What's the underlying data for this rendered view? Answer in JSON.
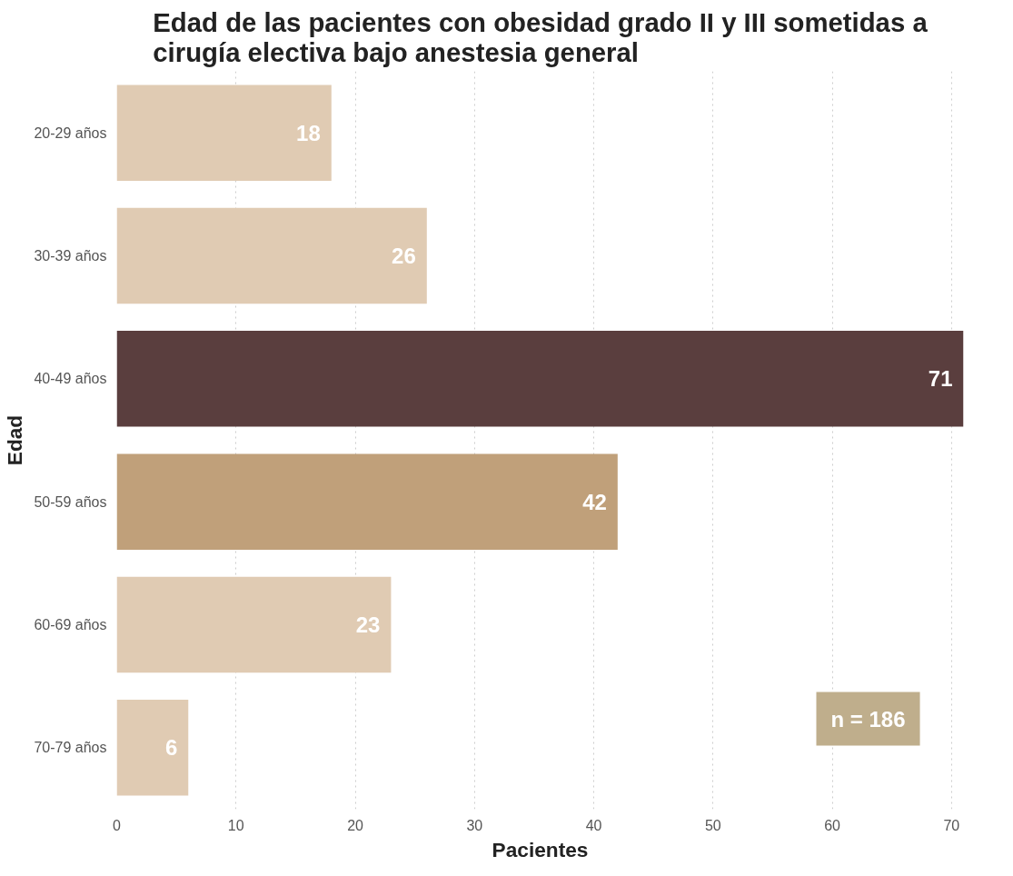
{
  "chart_data": {
    "type": "bar",
    "orientation": "horizontal",
    "title": "Edad de las pacientes con obesidad grado II y III sometidas a\ncirugía electiva bajo anestesia general",
    "xlabel": "Pacientes",
    "ylabel": "Edad",
    "categories": [
      "20-29 años",
      "30-39 años",
      "40-49 años",
      "50-59 años",
      "60-69 años",
      "70-79 años"
    ],
    "values": [
      18,
      26,
      71,
      42,
      23,
      6
    ],
    "colors": [
      "#e0cbb3",
      "#e0cbb3",
      "#5a3e3e",
      "#c0a07a",
      "#e0cbb3",
      "#e0cbb3"
    ],
    "xlim": [
      0,
      71
    ],
    "xticks": [
      0,
      10,
      20,
      30,
      40,
      50,
      60,
      70
    ],
    "grid": "x",
    "data_labels": true,
    "annotations": [
      "n = 186"
    ]
  }
}
